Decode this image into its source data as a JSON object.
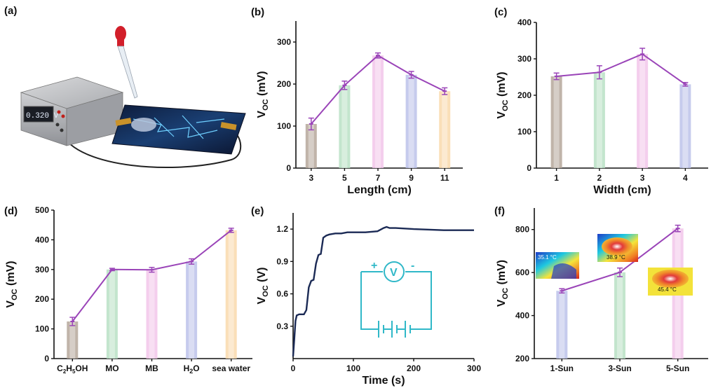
{
  "panels": {
    "a": {
      "label": "(a)",
      "display": "0.320 V"
    },
    "e_circuit": {
      "plus": "+",
      "v": "V",
      "minus": "-"
    },
    "f_thermal": [
      "35.1 °C",
      "38.9 °C",
      "45.4 °C"
    ]
  },
  "chart_data": [
    {
      "id": "b",
      "panel_label": "(b)",
      "type": "bar",
      "categories": [
        "3",
        "5",
        "7",
        "9",
        "11"
      ],
      "values": [
        105,
        197,
        268,
        222,
        183
      ],
      "errors": [
        14,
        10,
        6,
        8,
        8
      ],
      "bar_colors": [
        "#b5a79a",
        "#b9e0c4",
        "#f2c6ea",
        "#bcc2ea",
        "#f9d9ac"
      ],
      "xlabel": "Length (cm)",
      "ylabel": "V_OC (mV)",
      "ylim": [
        0,
        350
      ],
      "yticks": [
        0,
        100,
        200,
        300
      ],
      "line_color": "#9a44b8",
      "grid": false
    },
    {
      "id": "c",
      "panel_label": "(c)",
      "type": "bar",
      "categories": [
        "1",
        "2",
        "3",
        "4"
      ],
      "values": [
        252,
        263,
        313,
        230
      ],
      "errors": [
        9,
        18,
        16,
        5
      ],
      "bar_colors": [
        "#b5a79a",
        "#b9e0c4",
        "#f2c6ea",
        "#bcc2ea"
      ],
      "xlabel": "Width (cm)",
      "ylabel": "V_OC (mV)",
      "ylim": [
        0,
        400
      ],
      "yticks": [
        0,
        100,
        200,
        300,
        400
      ],
      "line_color": "#9a44b8",
      "grid": false
    },
    {
      "id": "d",
      "panel_label": "(d)",
      "type": "bar",
      "categories": [
        "C2H5OH",
        "MO",
        "MB",
        "H2O",
        "sea water"
      ],
      "values": [
        125,
        300,
        299,
        327,
        432
      ],
      "errors": [
        14,
        4,
        8,
        9,
        7
      ],
      "bar_colors": [
        "#b5a79a",
        "#b9e0c4",
        "#f2c6ea",
        "#bcc2ea",
        "#f9d9ac"
      ],
      "ylabel": "V_OC (mV)",
      "ylim": [
        0,
        500
      ],
      "yticks": [
        0,
        100,
        200,
        300,
        400,
        500
      ],
      "line_color": "#9a44b8",
      "grid": false
    },
    {
      "id": "e",
      "panel_label": "(e)",
      "type": "line",
      "x": [
        0,
        2,
        4,
        6,
        10,
        18,
        22,
        26,
        30,
        34,
        38,
        42,
        46,
        50,
        55,
        60,
        70,
        80,
        90,
        100,
        120,
        140,
        150,
        155,
        160,
        170,
        200,
        250,
        300
      ],
      "y": [
        0.02,
        0.18,
        0.35,
        0.4,
        0.41,
        0.41,
        0.45,
        0.66,
        0.72,
        0.73,
        0.88,
        0.96,
        0.97,
        1.12,
        1.14,
        1.15,
        1.16,
        1.16,
        1.17,
        1.17,
        1.17,
        1.18,
        1.21,
        1.22,
        1.21,
        1.21,
        1.2,
        1.19,
        1.19
      ],
      "xlabel": "Time (s)",
      "ylabel": "V_OC (V)",
      "xlim": [
        0,
        300
      ],
      "ylim": [
        0,
        1.35
      ],
      "xticks": [
        0,
        100,
        200,
        300
      ],
      "yticks": [
        0.3,
        0.6,
        0.9,
        1.2
      ],
      "line_color": "#1b2a55",
      "grid": false
    },
    {
      "id": "f",
      "panel_label": "(f)",
      "type": "bar",
      "categories": [
        "1-Sun",
        "3-Sun",
        "5-Sun"
      ],
      "values": [
        515,
        601,
        805
      ],
      "errors": [
        10,
        20,
        15
      ],
      "bar_colors": [
        "#bcc2ea",
        "#b9e0c4",
        "#f2c6ea"
      ],
      "ylabel": "V_OC (mV)",
      "ylim": [
        200,
        900
      ],
      "yticks": [
        200,
        400,
        600,
        800
      ],
      "line_color": "#9a44b8",
      "grid": false
    }
  ]
}
